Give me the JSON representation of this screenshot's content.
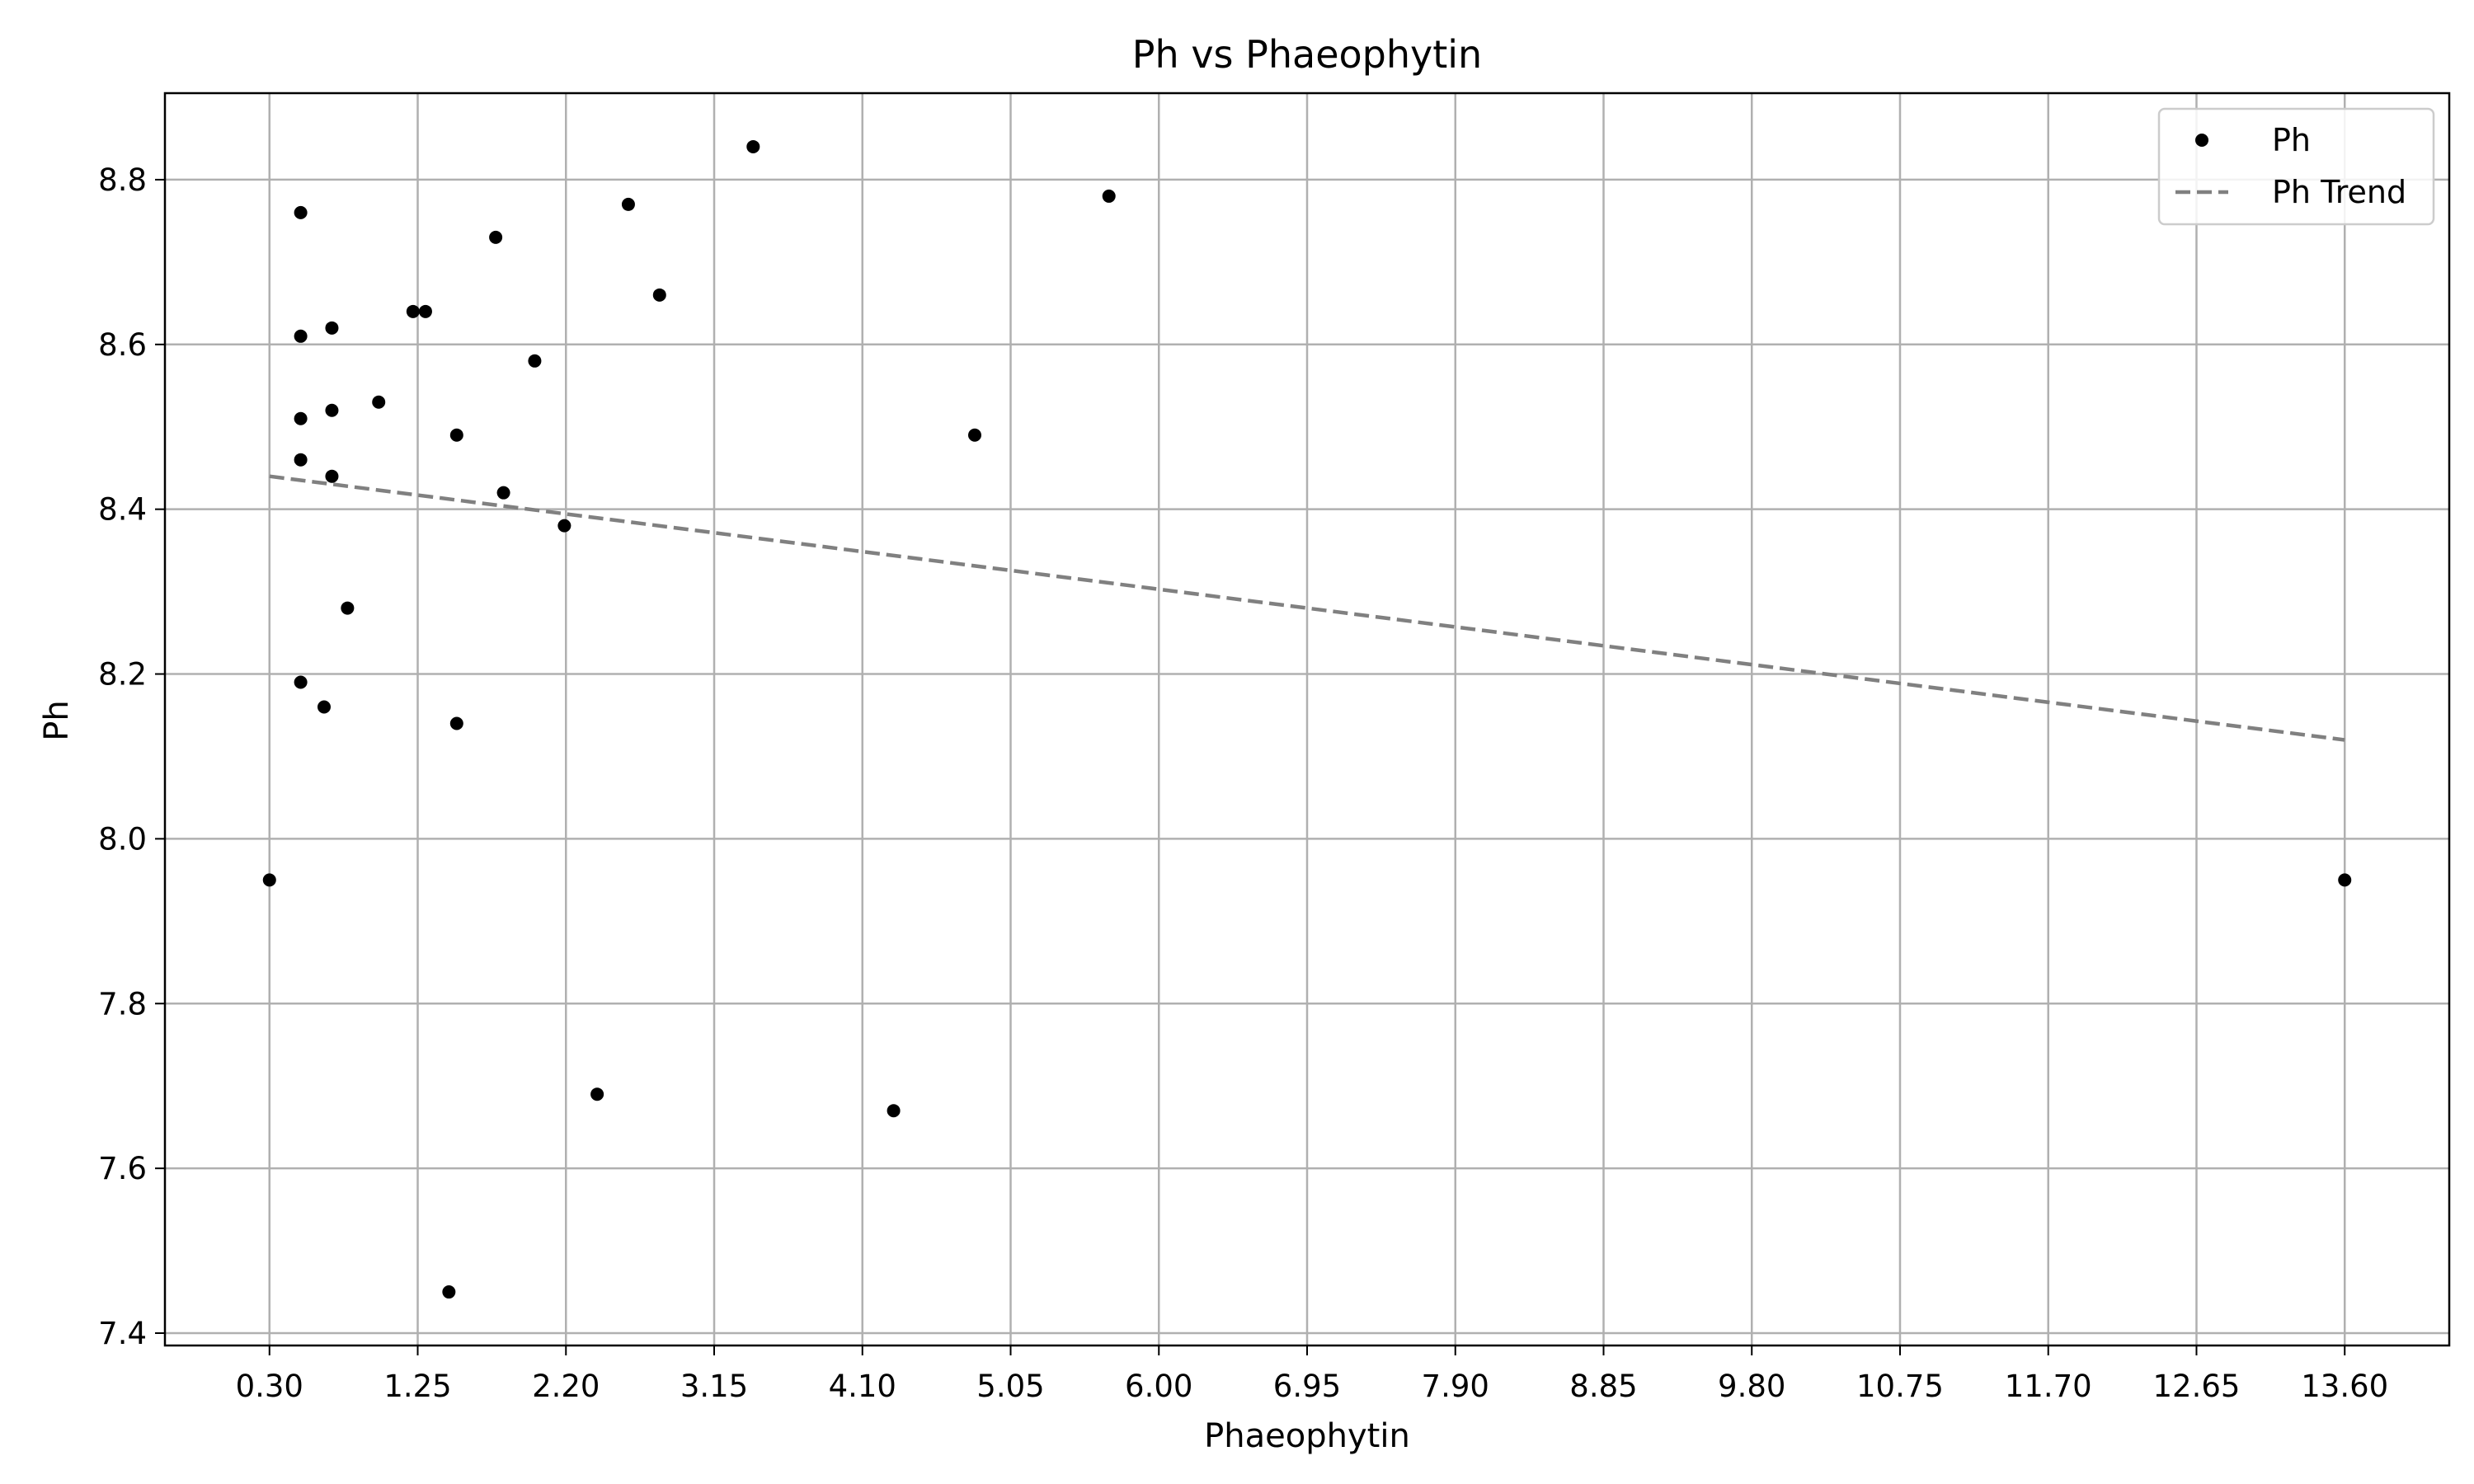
{
  "chart_data": {
    "type": "scatter",
    "title": "Ph vs Phaeophytin",
    "xlabel": "Phaeophytin",
    "ylabel": "Ph",
    "x_ticks": [
      "0.30",
      "1.25",
      "2.20",
      "3.15",
      "4.10",
      "5.05",
      "6.00",
      "6.95",
      "7.90",
      "8.85",
      "9.80",
      "10.75",
      "11.70",
      "12.65",
      "13.60"
    ],
    "y_ticks": [
      "7.4",
      "7.6",
      "7.8",
      "8.0",
      "8.2",
      "8.4",
      "8.6",
      "8.8"
    ],
    "xlim": [
      -0.37,
      14.27
    ],
    "ylim": [
      7.385,
      8.905
    ],
    "grid": true,
    "legend_position": "top-right",
    "series": [
      {
        "name": "Ph",
        "kind": "scatter",
        "color": "#000000",
        "points": [
          [
            0.3,
            7.95
          ],
          [
            0.5,
            8.76
          ],
          [
            0.5,
            8.61
          ],
          [
            0.5,
            8.51
          ],
          [
            0.5,
            8.46
          ],
          [
            0.5,
            8.19
          ],
          [
            0.65,
            8.16
          ],
          [
            0.7,
            8.62
          ],
          [
            0.7,
            8.52
          ],
          [
            0.7,
            8.44
          ],
          [
            0.8,
            8.28
          ],
          [
            1.0,
            8.53
          ],
          [
            1.22,
            8.64
          ],
          [
            1.3,
            8.64
          ],
          [
            1.45,
            7.45
          ],
          [
            1.5,
            8.49
          ],
          [
            1.5,
            8.14
          ],
          [
            1.75,
            8.73
          ],
          [
            1.8,
            8.42
          ],
          [
            2.0,
            8.58
          ],
          [
            2.19,
            8.38
          ],
          [
            2.4,
            7.69
          ],
          [
            2.6,
            8.77
          ],
          [
            2.8,
            8.66
          ],
          [
            3.4,
            8.84
          ],
          [
            4.3,
            7.67
          ],
          [
            4.82,
            8.49
          ],
          [
            5.68,
            8.78
          ],
          [
            13.6,
            7.95
          ]
        ]
      },
      {
        "name": "Ph Trend",
        "kind": "line",
        "style": "dashed",
        "color": "#808080",
        "points": [
          [
            0.3,
            8.44
          ],
          [
            13.6,
            8.12
          ]
        ]
      }
    ]
  }
}
